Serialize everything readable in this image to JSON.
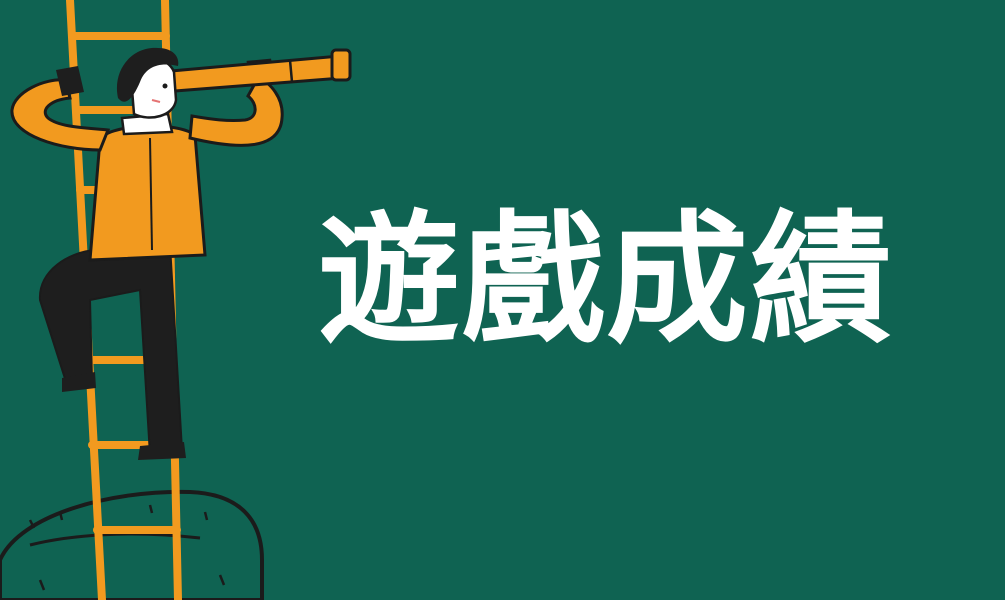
{
  "banner": {
    "title": "遊戲成績",
    "colors": {
      "background": "#0f6352",
      "title": "#ffffff",
      "accent": "#f29a1f",
      "outline": "#1b1b1b"
    },
    "illustration": {
      "description_icon": "man-on-ladder-with-telescope-icon"
    }
  }
}
